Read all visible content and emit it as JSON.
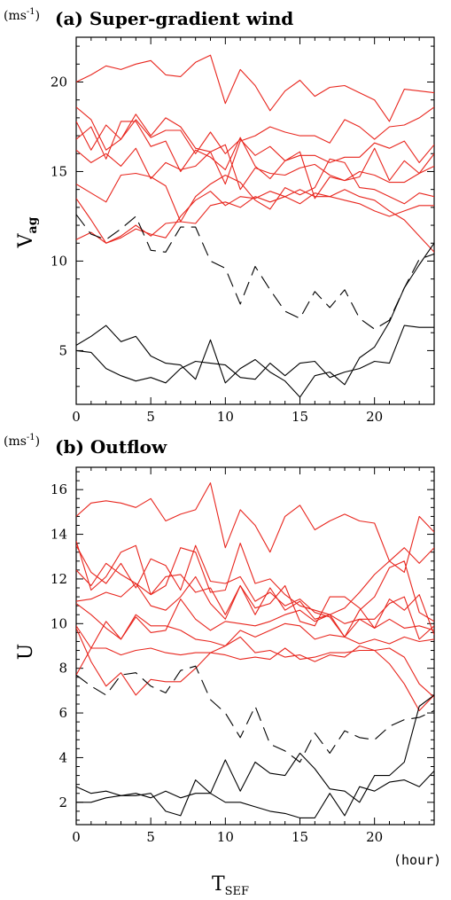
{
  "figure": {
    "xlabel_main": "T",
    "xlabel_sub": "SEF",
    "x_unit": "(hour)"
  },
  "chart_data": [
    {
      "type": "line",
      "panel": "a",
      "title": "(a) Super-gradient wind",
      "unit_base": "(ms",
      "unit_exp": "-1",
      "unit_close": ")",
      "ylabel_main": "V",
      "ylabel_sub": "ag",
      "xlim": [
        0,
        24
      ],
      "ylim": [
        2,
        22.5
      ],
      "xticks": [
        0,
        5,
        10,
        15,
        20
      ],
      "yticks": [
        5,
        10,
        15,
        20
      ],
      "colors": {
        "red": "#e8261e",
        "black": "#000000"
      },
      "x": [
        0,
        1,
        2,
        3,
        4,
        5,
        6,
        7,
        8,
        9,
        10,
        11,
        12,
        13,
        14,
        15,
        16,
        17,
        18,
        19,
        20,
        21,
        22,
        23,
        24
      ],
      "series": [
        {
          "color": "red",
          "dash": false,
          "values": [
            20.0,
            20.4,
            20.9,
            20.7,
            21.0,
            21.2,
            20.4,
            20.3,
            21.1,
            21.5,
            18.8,
            20.7,
            19.8,
            18.4,
            19.5,
            20.1,
            19.2,
            19.7,
            19.8,
            19.4,
            19.0,
            17.8,
            19.6,
            19.5,
            19.4
          ]
        },
        {
          "color": "red",
          "dash": false,
          "values": [
            18.6,
            17.9,
            16.2,
            16.8,
            18.2,
            17.0,
            18.0,
            17.5,
            16.3,
            16.1,
            14.3,
            16.7,
            17.0,
            17.5,
            17.2,
            17.0,
            17.0,
            16.6,
            17.9,
            17.5,
            16.8,
            17.5,
            17.6,
            18.0,
            18.6
          ]
        },
        {
          "color": "red",
          "dash": false,
          "values": [
            17.8,
            16.2,
            17.6,
            16.8,
            17.9,
            16.9,
            17.3,
            17.3,
            16.0,
            17.2,
            16.0,
            16.8,
            15.9,
            16.4,
            15.6,
            15.9,
            15.9,
            15.5,
            15.8,
            15.8,
            16.6,
            16.3,
            16.7,
            15.5,
            16.5
          ]
        },
        {
          "color": "red",
          "dash": false,
          "values": [
            16.8,
            17.5,
            15.7,
            17.8,
            17.8,
            16.4,
            16.7,
            15.0,
            16.2,
            15.8,
            15.1,
            16.9,
            15.3,
            14.6,
            15.6,
            16.1,
            13.5,
            14.7,
            14.5,
            14.7,
            16.3,
            14.5,
            15.6,
            14.9,
            16.0
          ]
        },
        {
          "color": "red",
          "dash": false,
          "values": [
            16.2,
            15.5,
            16.0,
            15.3,
            16.3,
            14.6,
            15.5,
            15.1,
            15.3,
            16.1,
            16.5,
            14.0,
            15.2,
            14.9,
            14.8,
            15.2,
            15.4,
            14.8,
            14.5,
            15.0,
            14.8,
            14.4,
            14.4,
            14.9,
            15.3
          ]
        },
        {
          "color": "red",
          "dash": false,
          "values": [
            14.3,
            13.8,
            13.3,
            14.8,
            14.9,
            14.7,
            14.2,
            12.2,
            13.6,
            14.3,
            14.8,
            14.4,
            13.4,
            12.9,
            14.1,
            13.7,
            14.1,
            15.7,
            15.5,
            14.1,
            14.0,
            13.6,
            13.2,
            13.8,
            13.6
          ]
        },
        {
          "color": "red",
          "dash": false,
          "values": [
            13.5,
            12.3,
            11.0,
            11.3,
            11.8,
            11.5,
            11.3,
            12.5,
            13.4,
            13.9,
            13.1,
            13.6,
            13.5,
            13.9,
            13.6,
            14.0,
            13.6,
            13.6,
            13.4,
            13.2,
            12.8,
            12.5,
            12.8,
            13.1,
            13.1
          ]
        },
        {
          "color": "red",
          "dash": false,
          "values": [
            11.2,
            11.6,
            11.0,
            11.4,
            12.0,
            11.4,
            12.1,
            12.2,
            12.1,
            13.1,
            13.3,
            13.0,
            13.6,
            13.3,
            13.6,
            13.2,
            13.8,
            13.6,
            14.0,
            13.6,
            13.4,
            12.8,
            12.3,
            11.4,
            10.5
          ]
        },
        {
          "color": "black",
          "dash": true,
          "values": [
            12.6,
            11.5,
            11.2,
            11.8,
            12.5,
            10.6,
            10.5,
            11.9,
            11.9,
            10.0,
            9.6,
            7.6,
            9.7,
            8.4,
            7.2,
            6.8,
            8.3,
            7.4,
            8.4,
            6.8,
            6.2,
            6.7,
            8.5,
            10.1,
            10.4
          ]
        },
        {
          "color": "black",
          "dash": false,
          "values": [
            5.3,
            5.8,
            6.4,
            5.5,
            5.8,
            4.7,
            4.3,
            4.2,
            3.4,
            5.6,
            3.2,
            4.0,
            4.5,
            3.8,
            3.3,
            2.4,
            3.6,
            3.8,
            3.1,
            4.6,
            5.2,
            6.6,
            8.5,
            9.8,
            11.0
          ]
        },
        {
          "color": "black",
          "dash": false,
          "values": [
            5.0,
            4.9,
            4.0,
            3.6,
            3.3,
            3.5,
            3.2,
            4.0,
            4.4,
            4.3,
            4.2,
            3.5,
            3.4,
            4.3,
            3.6,
            4.3,
            4.4,
            3.5,
            3.8,
            4.0,
            4.4,
            4.3,
            6.4,
            6.3,
            6.3
          ]
        }
      ]
    },
    {
      "type": "line",
      "panel": "b",
      "title": "(b) Outflow",
      "unit_base": "(ms",
      "unit_exp": "-1",
      "unit_close": ")",
      "ylabel_main": "U",
      "ylabel_sub": "",
      "xlim": [
        0,
        24
      ],
      "ylim": [
        1,
        17
      ],
      "xticks": [
        0,
        5,
        10,
        15,
        20
      ],
      "yticks": [
        2,
        4,
        6,
        8,
        10,
        12,
        14,
        16
      ],
      "colors": {
        "red": "#e8261e",
        "black": "#000000"
      },
      "x": [
        0,
        1,
        2,
        3,
        4,
        5,
        6,
        7,
        8,
        9,
        10,
        11,
        12,
        13,
        14,
        15,
        16,
        17,
        18,
        19,
        20,
        21,
        22,
        23,
        24
      ],
      "series": [
        {
          "color": "red",
          "dash": false,
          "values": [
            14.8,
            15.4,
            15.5,
            15.4,
            15.2,
            15.6,
            14.6,
            14.9,
            15.1,
            16.3,
            13.4,
            15.1,
            14.4,
            13.2,
            14.8,
            15.3,
            14.2,
            14.6,
            14.9,
            14.6,
            14.5,
            12.8,
            12.3,
            14.8,
            14.1
          ]
        },
        {
          "color": "red",
          "dash": false,
          "values": [
            13.7,
            11.5,
            12.1,
            13.2,
            13.5,
            11.3,
            11.7,
            13.4,
            13.2,
            11.4,
            11.5,
            13.6,
            11.8,
            12.0,
            11.3,
            10.8,
            10.6,
            10.4,
            10.7,
            11.4,
            12.2,
            12.8,
            13.4,
            12.7,
            13.4
          ]
        },
        {
          "color": "red",
          "dash": false,
          "values": [
            13.5,
            12.3,
            11.8,
            12.7,
            11.6,
            12.9,
            12.6,
            11.5,
            13.5,
            11.9,
            11.8,
            12.1,
            11.0,
            11.4,
            10.8,
            11.1,
            10.5,
            10.3,
            9.4,
            10.6,
            11.2,
            12.5,
            12.8,
            10.5,
            10.1
          ]
        },
        {
          "color": "red",
          "dash": false,
          "values": [
            12.4,
            11.7,
            12.7,
            12.2,
            11.8,
            11.3,
            12.1,
            12.2,
            11.4,
            11.6,
            10.4,
            11.7,
            10.7,
            10.9,
            11.7,
            10.1,
            9.9,
            11.2,
            11.2,
            10.7,
            9.8,
            11.1,
            10.6,
            11.3,
            9.5
          ]
        },
        {
          "color": "red",
          "dash": false,
          "values": [
            11.0,
            11.1,
            11.4,
            11.2,
            11.8,
            10.8,
            10.6,
            11.2,
            12.1,
            10.9,
            10.2,
            11.7,
            10.4,
            11.6,
            10.6,
            11.0,
            10.2,
            10.4,
            9.4,
            10.2,
            9.8,
            10.2,
            9.8,
            9.9,
            9.7
          ]
        },
        {
          "color": "red",
          "dash": false,
          "values": [
            10.9,
            10.4,
            9.8,
            9.3,
            10.3,
            9.6,
            9.7,
            11.1,
            10.2,
            9.7,
            10.1,
            10.0,
            9.9,
            10.1,
            10.4,
            10.6,
            10.1,
            10.4,
            10.0,
            10.2,
            10.2,
            10.9,
            11.2,
            9.3,
            9.9
          ]
        },
        {
          "color": "red",
          "dash": false,
          "values": [
            9.9,
            8.9,
            10.1,
            9.3,
            10.4,
            9.9,
            9.9,
            9.7,
            9.3,
            9.2,
            9.0,
            9.7,
            9.4,
            9.7,
            10.0,
            9.9,
            9.3,
            9.5,
            9.4,
            9.1,
            9.3,
            9.1,
            9.4,
            9.2,
            9.3
          ]
        },
        {
          "color": "red",
          "dash": false,
          "values": [
            9.8,
            8.3,
            7.2,
            7.8,
            6.8,
            7.5,
            7.4,
            7.4,
            8.0,
            8.7,
            9.0,
            9.4,
            8.7,
            8.8,
            8.5,
            8.6,
            8.3,
            8.6,
            8.5,
            9.0,
            8.8,
            8.2,
            7.3,
            6.1,
            6.8
          ]
        },
        {
          "color": "red",
          "dash": false,
          "values": [
            7.7,
            8.9,
            8.9,
            8.6,
            8.8,
            8.9,
            8.7,
            8.6,
            8.7,
            8.7,
            8.6,
            8.4,
            8.5,
            8.4,
            8.9,
            8.4,
            8.5,
            8.7,
            8.7,
            8.8,
            8.8,
            8.9,
            8.5,
            7.3,
            6.7
          ]
        },
        {
          "color": "black",
          "dash": true,
          "values": [
            7.7,
            7.2,
            6.8,
            7.7,
            7.8,
            7.2,
            6.9,
            7.9,
            8.1,
            6.6,
            6.0,
            4.9,
            6.3,
            4.6,
            4.3,
            3.8,
            5.1,
            4.2,
            5.2,
            4.9,
            4.8,
            5.4,
            5.7,
            5.8,
            6.1
          ]
        },
        {
          "color": "black",
          "dash": false,
          "values": [
            2.7,
            2.4,
            2.5,
            2.3,
            2.4,
            2.2,
            2.5,
            2.2,
            2.4,
            2.4,
            2.0,
            2.0,
            1.8,
            1.6,
            1.5,
            1.3,
            1.3,
            2.4,
            1.4,
            2.7,
            2.5,
            2.9,
            3.0,
            2.7,
            3.4
          ]
        },
        {
          "color": "black",
          "dash": false,
          "values": [
            2.0,
            2.0,
            2.2,
            2.3,
            2.3,
            2.4,
            1.6,
            1.4,
            3.0,
            2.4,
            3.9,
            2.5,
            3.8,
            3.3,
            3.2,
            4.2,
            3.5,
            2.6,
            2.5,
            2.0,
            3.2,
            3.2,
            3.8,
            6.3,
            6.8
          ]
        }
      ]
    }
  ]
}
